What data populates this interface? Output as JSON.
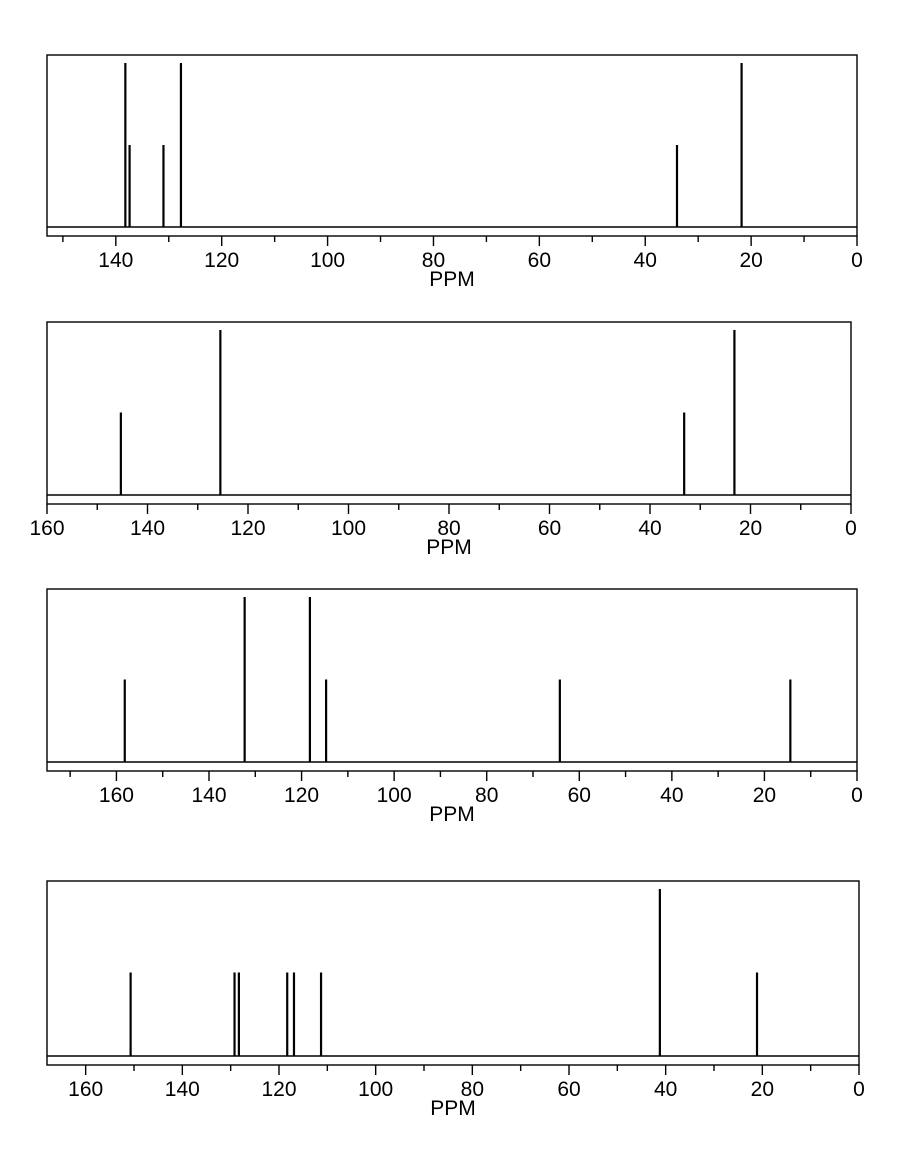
{
  "chart_data": [
    {
      "type": "bar",
      "subtype": "stick-spectrum",
      "xlabel": "PPM",
      "ylabel": "",
      "x_reversed": true,
      "xlim": [
        153,
        0
      ],
      "ylim": [
        0,
        1
      ],
      "grid": false,
      "ticks": [
        140,
        120,
        100,
        80,
        60,
        40,
        20,
        0
      ],
      "peaks": [
        {
          "ppm": 138.2,
          "height": 1.0
        },
        {
          "ppm": 137.4,
          "height": 0.5
        },
        {
          "ppm": 131.0,
          "height": 0.5
        },
        {
          "ppm": 127.7,
          "height": 1.0
        },
        {
          "ppm": 34.0,
          "height": 0.5
        },
        {
          "ppm": 21.8,
          "height": 1.0
        }
      ]
    },
    {
      "type": "bar",
      "subtype": "stick-spectrum",
      "xlabel": "PPM",
      "ylabel": "",
      "x_reversed": true,
      "xlim": [
        160,
        0
      ],
      "ylim": [
        0,
        1
      ],
      "grid": false,
      "ticks": [
        160,
        140,
        120,
        100,
        80,
        60,
        40,
        20,
        0
      ],
      "peaks": [
        {
          "ppm": 145.3,
          "height": 0.5
        },
        {
          "ppm": 125.5,
          "height": 1.0
        },
        {
          "ppm": 33.2,
          "height": 0.5
        },
        {
          "ppm": 23.2,
          "height": 1.0
        }
      ]
    },
    {
      "type": "bar",
      "subtype": "stick-spectrum",
      "xlabel": "PPM",
      "ylabel": "",
      "x_reversed": true,
      "xlim": [
        175,
        0
      ],
      "ylim": [
        0,
        1
      ],
      "grid": false,
      "ticks": [
        160,
        140,
        120,
        100,
        80,
        60,
        40,
        20,
        0
      ],
      "peaks": [
        {
          "ppm": 158.2,
          "height": 0.5
        },
        {
          "ppm": 132.3,
          "height": 1.0
        },
        {
          "ppm": 118.2,
          "height": 1.0
        },
        {
          "ppm": 114.7,
          "height": 0.5
        },
        {
          "ppm": 64.2,
          "height": 0.5
        },
        {
          "ppm": 14.4,
          "height": 0.5
        }
      ]
    },
    {
      "type": "bar",
      "subtype": "stick-spectrum",
      "xlabel": "PPM",
      "ylabel": "",
      "x_reversed": true,
      "xlim": [
        168,
        0
      ],
      "ylim": [
        0,
        1
      ],
      "grid": false,
      "ticks": [
        160,
        140,
        120,
        100,
        80,
        60,
        40,
        20,
        0
      ],
      "peaks": [
        {
          "ppm": 150.7,
          "height": 0.5
        },
        {
          "ppm": 129.2,
          "height": 0.5
        },
        {
          "ppm": 128.3,
          "height": 0.5
        },
        {
          "ppm": 118.3,
          "height": 0.5
        },
        {
          "ppm": 116.9,
          "height": 0.5
        },
        {
          "ppm": 111.3,
          "height": 0.5
        },
        {
          "ppm": 41.2,
          "height": 1.0
        },
        {
          "ppm": 21.1,
          "height": 0.5
        }
      ]
    }
  ]
}
